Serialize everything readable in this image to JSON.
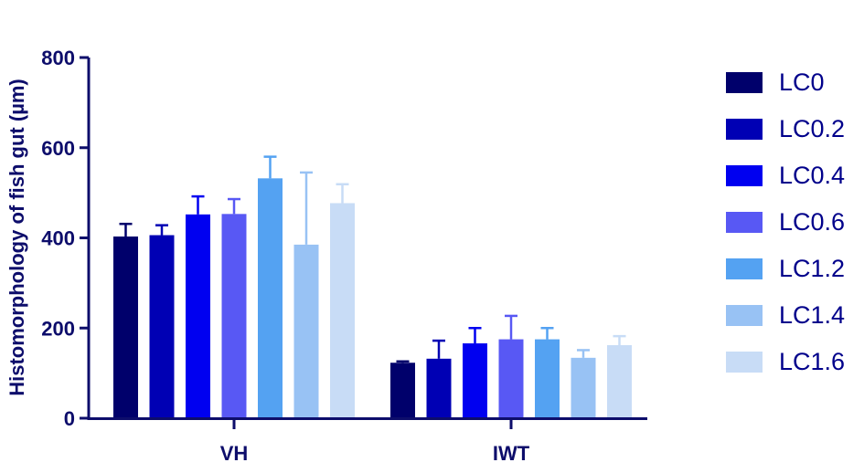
{
  "chart_data": {
    "type": "bar",
    "title": "",
    "xlabel": "",
    "ylabel": "Histomorphology of fish gut (µm)",
    "ylim": [
      0,
      800
    ],
    "yticks": [
      0,
      200,
      400,
      600,
      800
    ],
    "grid": false,
    "legend_position": "right",
    "categories": [
      "VH",
      "IWT"
    ],
    "series": [
      {
        "name": "LC0",
        "color": "#00006b",
        "values": [
          403,
          123
        ],
        "errors": [
          28,
          3
        ]
      },
      {
        "name": "LC0.2",
        "color": "#0000b4",
        "values": [
          406,
          132
        ],
        "errors": [
          22,
          40
        ]
      },
      {
        "name": "LC0.4",
        "color": "#0000f0",
        "values": [
          452,
          166
        ],
        "errors": [
          40,
          34
        ]
      },
      {
        "name": "LC0.6",
        "color": "#5858f4",
        "values": [
          453,
          175
        ],
        "errors": [
          33,
          52
        ]
      },
      {
        "name": "LC1.2",
        "color": "#54a2f2",
        "values": [
          532,
          175
        ],
        "errors": [
          48,
          25
        ]
      },
      {
        "name": "LC1.4",
        "color": "#98c2f4",
        "values": [
          385,
          134
        ],
        "errors": [
          160,
          17
        ]
      },
      {
        "name": "LC1.6",
        "color": "#c8dcf6",
        "values": [
          477,
          162
        ],
        "errors": [
          42,
          20
        ]
      }
    ]
  }
}
